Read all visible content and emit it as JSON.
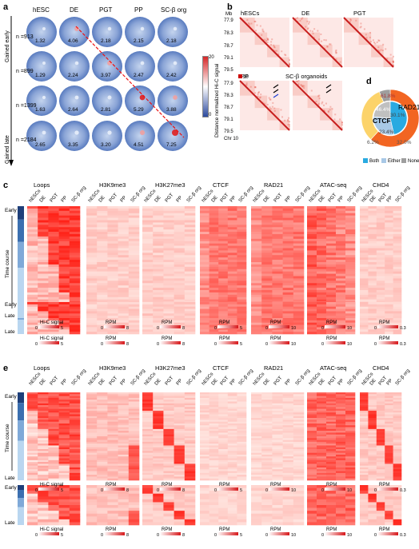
{
  "panel_letters": [
    "a",
    "b",
    "c",
    "d",
    "e"
  ],
  "panel_a": {
    "stages": [
      "hESC",
      "DE",
      "PGT",
      "PP",
      "SC-β org"
    ],
    "rows": [
      {
        "n": "n =913",
        "values": [
          "1.32",
          "4.06",
          "2.18",
          "2.15",
          "2.18"
        ]
      },
      {
        "n": "n =899",
        "values": [
          "1.29",
          "2.24",
          "3.97",
          "2.47",
          "2.42"
        ]
      },
      {
        "n": "n =1399",
        "values": [
          "1.63",
          "2.64",
          "2.81",
          "5.29",
          "3.88"
        ]
      },
      {
        "n": "n =2184",
        "values": [
          "2.65",
          "3.35",
          "3.20",
          "4.51",
          "7.25"
        ]
      }
    ],
    "side_top": "Gained early",
    "side_bottom": "Gained late",
    "colorbar_label": "Distance normalized Hi-C signal",
    "colorbar_max": "20",
    "colorbar_min": "0"
  },
  "panel_b": {
    "titles": [
      "hESCs",
      "DE",
      "PGT",
      "PP",
      "SC-β organoids"
    ],
    "unit": "Mb",
    "ticks_top": [
      "77.9",
      "78.3",
      "78.7",
      "79.1",
      "79.5"
    ],
    "ticks_bottom": [
      "77.9",
      "78.3",
      "78.7",
      "79.1",
      "79.5"
    ],
    "chr": "Chr 10",
    "cbar_max": "20",
    "cbar_min": "0"
  },
  "panel_d": {
    "chart_data": {
      "type": "pie",
      "outer": {
        "label": "RAD21",
        "slices": [
          {
            "name": "Both",
            "value": 61.8,
            "color": "#f26522"
          },
          {
            "name": "Either",
            "value": 32.0,
            "color": "#fcd36a"
          },
          {
            "name": "None",
            "value": 6.2,
            "color": "#9e9e9e"
          }
        ]
      },
      "inner": {
        "label": "CTCF",
        "slices": [
          {
            "name": "Both",
            "value": 46.4,
            "color": "#29aae1"
          },
          {
            "name": "Either",
            "value": 30.1,
            "color": "#a8c8e6"
          },
          {
            "name": "None",
            "value": 23.4,
            "color": "#c0c0c0"
          }
        ]
      }
    },
    "labels": {
      "o1": "61.8%",
      "o2": "32.0%",
      "o3": "6.2%",
      "i1": "46.4%",
      "i2": "30.1%",
      "i3": "23.4%",
      "rad21": "RAD21",
      "ctcf": "CTCF"
    },
    "legend": [
      {
        "name": "Both",
        "color": "#29aae1"
      },
      {
        "name": "Either",
        "color": "#a8c8e6"
      },
      {
        "name": "None",
        "color": "#9e9e9e"
      }
    ]
  },
  "panel_c": {
    "tracks": [
      "Loops",
      "H3K9me3",
      "H3K27me3",
      "CTCF",
      "RAD21",
      "ATAC-seq",
      "CHD4"
    ],
    "col_labels": [
      "hESCs",
      "DE",
      "PGT",
      "PP",
      "SC-β org"
    ],
    "time_top": "Early",
    "time_mid": "Time course",
    "time_bottom": "Late",
    "scale_labels": [
      "Hi-C signal",
      "RPM",
      "RPM",
      "RPM",
      "RPM",
      "RPM",
      "RPM"
    ],
    "scale_max": [
      "5",
      "8",
      "8",
      "5",
      "10",
      "10",
      "0.3"
    ],
    "scale_min": "0"
  },
  "panel_e": {
    "tracks": [
      "Loops",
      "H3K9me3",
      "H3K27me3",
      "CTCF",
      "RAD21",
      "ATAC-seq",
      "CHD4"
    ],
    "col_labels": [
      "hESCs",
      "DE",
      "PGT",
      "PP",
      "SC-β org"
    ],
    "time_top": "Early",
    "time_mid": "Time course",
    "time_bottom": "Late",
    "scale_labels": [
      "Hi-C signal",
      "RPM",
      "RPM",
      "RPM",
      "RPM",
      "RPM",
      "RPM"
    ],
    "scale_max": [
      "5",
      "8",
      "8",
      "5",
      "10",
      "10",
      "0.3"
    ],
    "scale_min": "0"
  }
}
